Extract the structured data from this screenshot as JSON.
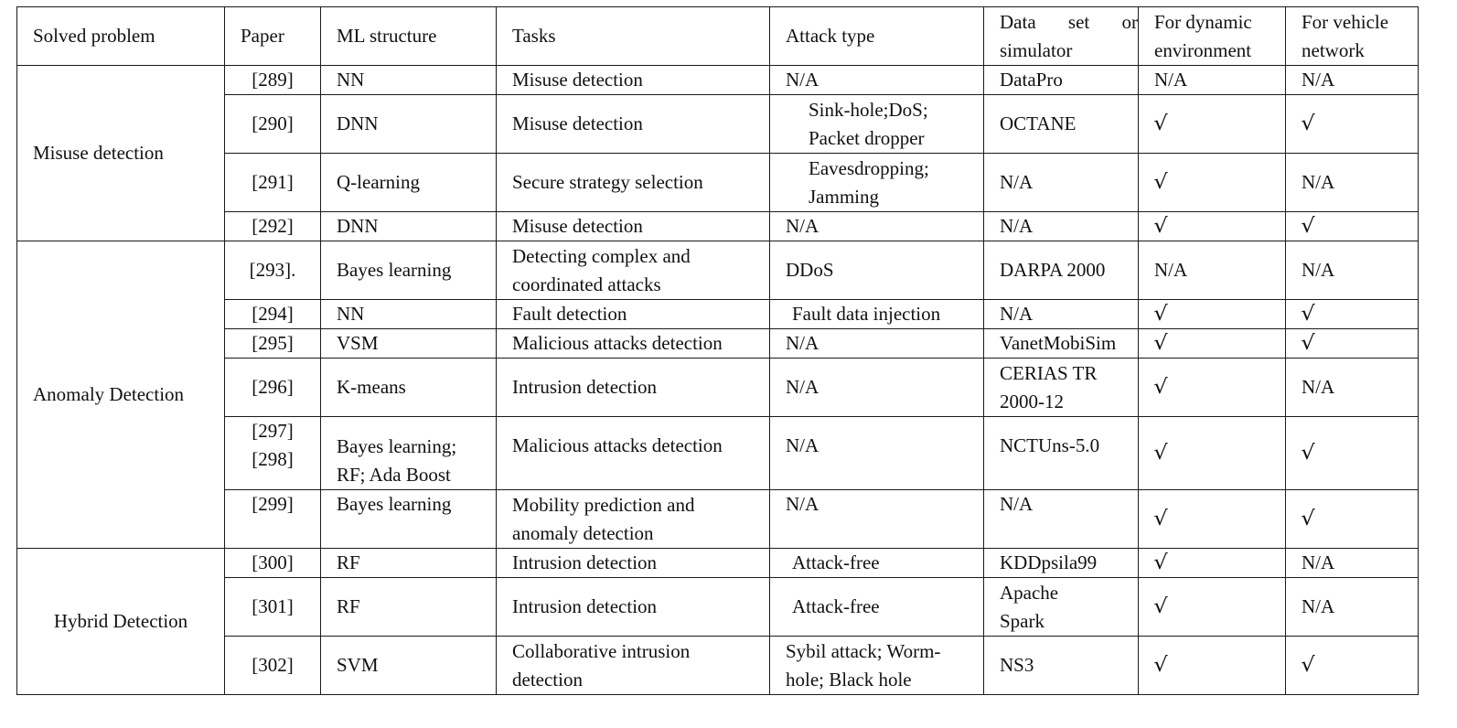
{
  "headers": {
    "solved_problem": "Solved problem",
    "paper": "Paper",
    "ml_structure": "ML structure",
    "tasks": "Tasks",
    "attack_type": "Attack type",
    "dataset": "Data set or simulator",
    "dynamic": "For dynamic environment",
    "vehicle": "For vehicle network"
  },
  "groups": {
    "misuse": "Misuse detection",
    "anomaly": "Anomaly Detection",
    "hybrid": "Hybrid Detection"
  },
  "rows": [
    {
      "paper": "[289]",
      "ml": "NN",
      "task": "Misuse detection",
      "attack": "N/A",
      "dataset": "DataPro",
      "dynamic": "N/A",
      "vehicle": "N/A"
    },
    {
      "paper": "[290]",
      "ml": "DNN",
      "task": "Misuse detection",
      "attack": "Sink-hole;DoS;\nPacket dropper",
      "dataset": "OCTANE",
      "dynamic": "√",
      "vehicle": "√"
    },
    {
      "paper": "[291]",
      "ml": "Q-learning",
      "task": "Secure strategy selection",
      "attack": "Eavesdropping;\nJamming",
      "dataset": "N/A",
      "dynamic": "√",
      "vehicle": "N/A"
    },
    {
      "paper": "[292]",
      "ml": "DNN",
      "task": "Misuse detection",
      "attack": "N/A",
      "dataset": "N/A",
      "dynamic": "√",
      "vehicle": "√"
    },
    {
      "paper": "[293].",
      "ml": "Bayes learning",
      "task": "Detecting complex and\ncoordinated attacks",
      "attack": "DDoS",
      "dataset": "DARPA 2000",
      "dynamic": "N/A",
      "vehicle": "N/A"
    },
    {
      "paper": "[294]",
      "ml": "NN",
      "task": "Fault detection",
      "attack": "Fault data injection",
      "dataset": "N/A",
      "dynamic": "√",
      "vehicle": "√"
    },
    {
      "paper": "[295]",
      "ml": "VSM",
      "task": "Malicious attacks detection",
      "attack": "N/A",
      "dataset": "VanetMobiSim",
      "dynamic": "√",
      "vehicle": "√"
    },
    {
      "paper": "[296]",
      "ml": "K-means",
      "task": "Intrusion detection",
      "attack": "N/A",
      "dataset": "CERIAS TR\n2000-12",
      "dynamic": "√",
      "vehicle": "N/A"
    },
    {
      "paper": "[297]\n[298]",
      "ml": "Bayes learning;\nRF; Ada Boost",
      "task": "Malicious attacks detection",
      "attack": "N/A",
      "dataset": "NCTUns-5.0",
      "dynamic": "√",
      "vehicle": "√"
    },
    {
      "paper": "[299]",
      "ml": "Bayes learning",
      "task": "Mobility prediction and\nanomaly detection",
      "attack": "N/A",
      "dataset": "N/A",
      "dynamic": "√",
      "vehicle": "√"
    },
    {
      "paper": "[300]",
      "ml": "RF",
      "task": "Intrusion detection",
      "attack": "Attack-free",
      "dataset": "KDDpsila99",
      "dynamic": "√",
      "vehicle": "N/A"
    },
    {
      "paper": "[301]",
      "ml": "RF",
      "task": "Intrusion detection",
      "attack": "Attack-free",
      "dataset": "Apache\nSpark",
      "dynamic": "√",
      "vehicle": "N/A"
    },
    {
      "paper": "[302]",
      "ml": "SVM",
      "task": "Collaborative intrusion\ndetection",
      "attack": "Sybil attack; Worm-\nhole; Black hole",
      "dataset": "NS3",
      "dynamic": "√",
      "vehicle": "√"
    }
  ]
}
